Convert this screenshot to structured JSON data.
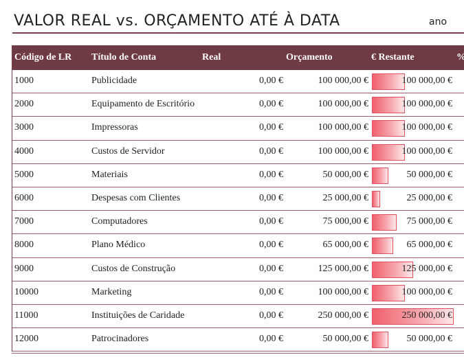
{
  "header": {
    "title": "VALOR REAL vs. ORÇAMENTO ATÉ À DATA",
    "period": "ano"
  },
  "table": {
    "columns": {
      "code": "Código de LR",
      "title": "Título de Conta",
      "real": "Real",
      "budget": "Orçamento",
      "remaining": "€ Restante",
      "percent": "%"
    },
    "rows": [
      {
        "code": "1000",
        "title": "Publicidade",
        "real": "0,00 €",
        "budget": "100 000,00 €",
        "remaining": "100 000,00 €",
        "remaining_value": 100000
      },
      {
        "code": "2000",
        "title": "Equipamento de Escritório",
        "real": "0,00 €",
        "budget": "100 000,00 €",
        "remaining": "100 000,00 €",
        "remaining_value": 100000
      },
      {
        "code": "3000",
        "title": "Impressoras",
        "real": "0,00 €",
        "budget": "100 000,00 €",
        "remaining": "100 000,00 €",
        "remaining_value": 100000
      },
      {
        "code": "4000",
        "title": "Custos de Servidor",
        "real": "0,00 €",
        "budget": "100 000,00 €",
        "remaining": "100 000,00 €",
        "remaining_value": 100000
      },
      {
        "code": "5000",
        "title": "Materiais",
        "real": "0,00 €",
        "budget": "50 000,00 €",
        "remaining": "50 000,00 €",
        "remaining_value": 50000
      },
      {
        "code": "6000",
        "title": "Despesas com Clientes",
        "real": "0,00 €",
        "budget": "25 000,00 €",
        "remaining": "25 000,00 €",
        "remaining_value": 25000
      },
      {
        "code": "7000",
        "title": "Computadores",
        "real": "0,00 €",
        "budget": "75 000,00 €",
        "remaining": "75 000,00 €",
        "remaining_value": 75000
      },
      {
        "code": "8000",
        "title": "Plano Médico",
        "real": "0,00 €",
        "budget": "65 000,00 €",
        "remaining": "65 000,00 €",
        "remaining_value": 65000
      },
      {
        "code": "9000",
        "title": "Custos de Construção",
        "real": "0,00 €",
        "budget": "125 000,00 €",
        "remaining": "125 000,00 €",
        "remaining_value": 125000
      },
      {
        "code": "10000",
        "title": "Marketing",
        "real": "0,00 €",
        "budget": "100 000,00 €",
        "remaining": "100 000,00 €",
        "remaining_value": 100000
      },
      {
        "code": "11000",
        "title": "Instituições de Caridade",
        "real": "0,00 €",
        "budget": "250 000,00 €",
        "remaining": "250 000,00 €",
        "remaining_value": 250000
      },
      {
        "code": "12000",
        "title": "Patrocinadores",
        "real": "0,00 €",
        "budget": "50 000,00 €",
        "remaining": "50 000,00 €",
        "remaining_value": 50000
      }
    ]
  },
  "colors": {
    "header_bg": "#6e3a43",
    "rule": "#7a3f4a",
    "bar": "#f0606c"
  }
}
